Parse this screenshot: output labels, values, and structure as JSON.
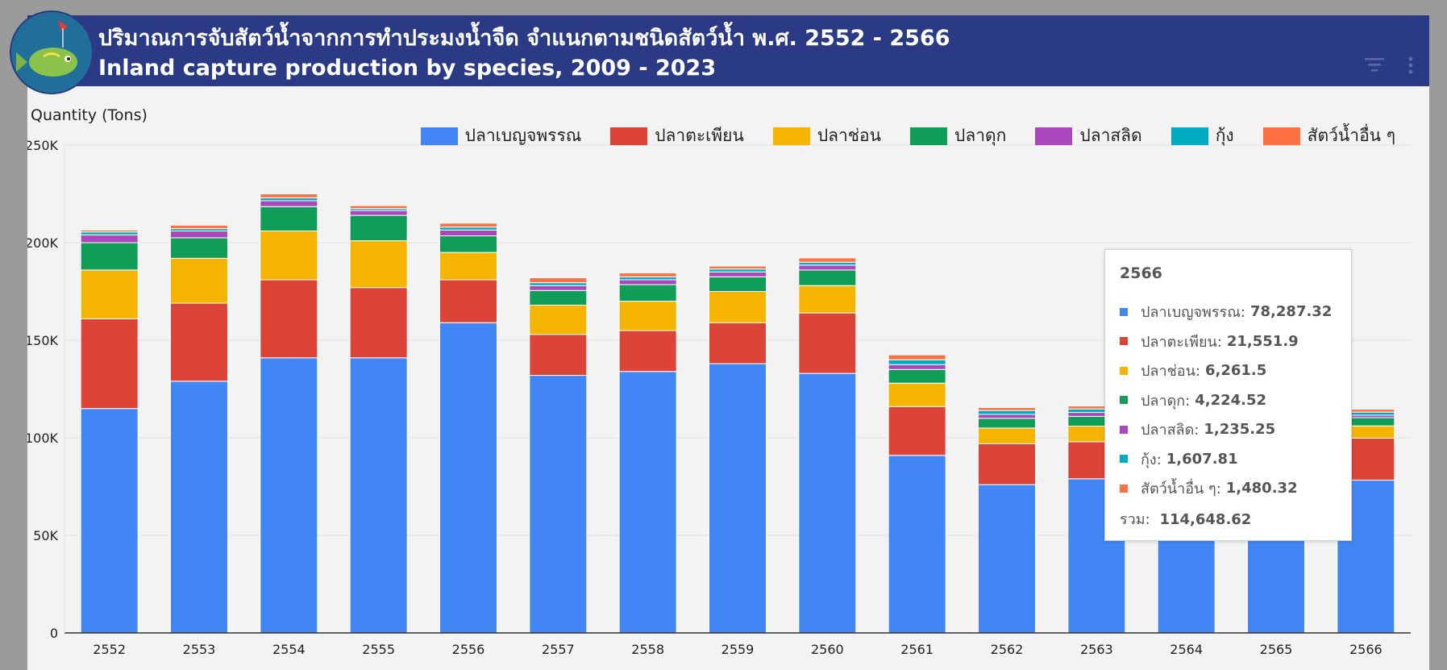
{
  "header": {
    "title_th": "ปริมาณการจับสัตว์น้ำจากการทำประมงน้ำจืด จำแนกตามชนิดสัตว์น้ำ พ.ศ. 2552 - 2566",
    "title_en": "Inland capture production by species, 2009 - 2023"
  },
  "icons": {
    "logo": "fish-logo-icon",
    "filter": "filter-icon",
    "menu": "more-vert-icon"
  },
  "colors": {
    "header_bg": "#2a3a85",
    "series": [
      "#4285f4",
      "#db4437",
      "#f4b400",
      "#0f9d58",
      "#ab47bc",
      "#00acc1",
      "#ff7043"
    ]
  },
  "chart_data": {
    "type": "bar",
    "stacked": true,
    "ylabel": "Quantity (Tons)",
    "ylim": [
      0,
      250000
    ],
    "y_ticks": [
      "0",
      "50K",
      "100K",
      "150K",
      "200K",
      "250K"
    ],
    "y_tick_values": [
      0,
      50000,
      100000,
      150000,
      200000,
      250000
    ],
    "grid": true,
    "legend_position": "top-right",
    "categories": [
      "2552",
      "2553",
      "2554",
      "2555",
      "2556",
      "2557",
      "2558",
      "2559",
      "2560",
      "2561",
      "2562",
      "2563",
      "2564",
      "2565",
      "2566"
    ],
    "series": [
      {
        "name": "ปลาเบญจพรรณ",
        "values": [
          115000,
          129000,
          141000,
          141000,
          159000,
          132000,
          134000,
          138000,
          133000,
          91000,
          76000,
          79000,
          72000,
          70000,
          78287.32
        ]
      },
      {
        "name": "ปลาตะเพียน",
        "values": [
          46000,
          40000,
          40000,
          36000,
          22000,
          21000,
          21000,
          21000,
          31000,
          25000,
          21000,
          19000,
          18000,
          17000,
          21551.9
        ]
      },
      {
        "name": "ปลาช่อน",
        "values": [
          25000,
          23000,
          25000,
          24000,
          14000,
          15000,
          15000,
          16000,
          14000,
          12000,
          8000,
          8000,
          7500,
          7000,
          6261.5
        ]
      },
      {
        "name": "ปลาดุก",
        "values": [
          14000,
          10500,
          12500,
          13000,
          8500,
          7500,
          8500,
          7500,
          8000,
          7000,
          5000,
          5000,
          4800,
          4500,
          4224.52
        ]
      },
      {
        "name": "ปลาสลิด",
        "values": [
          4000,
          3500,
          3000,
          2500,
          3000,
          2500,
          2500,
          2500,
          2500,
          2500,
          2000,
          2000,
          1500,
          1400,
          1235.25
        ]
      },
      {
        "name": "กุ้ง",
        "values": [
          1500,
          1200,
          1500,
          1000,
          1500,
          1500,
          1500,
          1500,
          1500,
          2500,
          2000,
          1800,
          1700,
          1600,
          1607.81
        ]
      },
      {
        "name": "สัตว์น้ำอื่น ๆ",
        "values": [
          1000,
          1800,
          2000,
          1500,
          2000,
          2500,
          2000,
          1500,
          2200,
          2500,
          1500,
          1500,
          1500,
          1500,
          1480.32
        ]
      }
    ]
  },
  "tooltip": {
    "title": "2566",
    "rows": [
      {
        "label": "ปลาเบญจพรรณ:",
        "value": "78,287.32"
      },
      {
        "label": "ปลาตะเพียน:",
        "value": "21,551.9"
      },
      {
        "label": "ปลาช่อน:",
        "value": "6,261.5"
      },
      {
        "label": "ปลาดุก:",
        "value": "4,224.52"
      },
      {
        "label": "ปลาสลิด:",
        "value": "1,235.25"
      },
      {
        "label": "กุ้ง:",
        "value": "1,607.81"
      },
      {
        "label": "สัตว์น้ำอื่น ๆ:",
        "value": "1,480.32"
      }
    ],
    "total_label": "รวม:",
    "total_value": "114,648.62"
  }
}
